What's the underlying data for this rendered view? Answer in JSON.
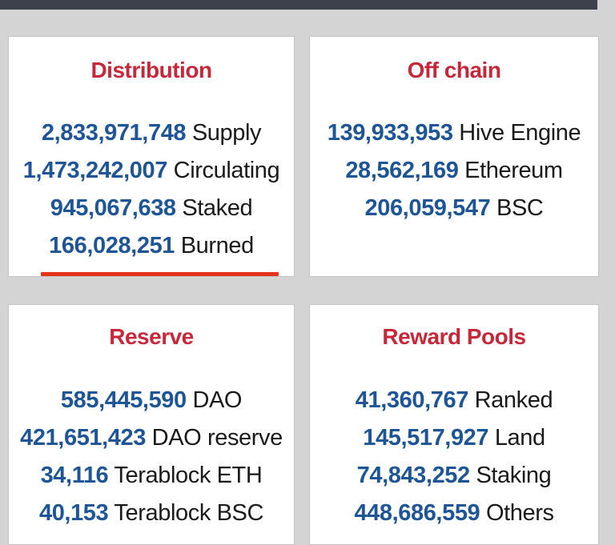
{
  "colors": {
    "background": "#d4d4d4",
    "card_background": "#ffffff",
    "title": "#c6283a",
    "number": "#1d5597",
    "label": "#1a1a1a",
    "underline": "#e5321c",
    "top_bar": "#3c414c"
  },
  "cards": {
    "distribution": {
      "title": "Distribution",
      "rows": [
        {
          "value": "2,833,971,748",
          "label": "Supply"
        },
        {
          "value": "1,473,242,007",
          "label": "Circulating"
        },
        {
          "value": "945,067,638",
          "label": "Staked"
        },
        {
          "value": "166,028,251",
          "label": "Burned"
        }
      ]
    },
    "off_chain": {
      "title": "Off chain",
      "rows": [
        {
          "value": "139,933,953",
          "label": "Hive Engine"
        },
        {
          "value": "28,562,169",
          "label": "Ethereum"
        },
        {
          "value": "206,059,547",
          "label": "BSC"
        }
      ]
    },
    "reserve": {
      "title": "Reserve",
      "rows": [
        {
          "value": "585,445,590",
          "label": "DAO"
        },
        {
          "value": "421,651,423",
          "label": "DAO reserve"
        },
        {
          "value": "34,116",
          "label": "Terablock ETH"
        },
        {
          "value": "40,153",
          "label": "Terablock BSC"
        }
      ]
    },
    "reward_pools": {
      "title": "Reward Pools",
      "rows": [
        {
          "value": "41,360,767",
          "label": "Ranked"
        },
        {
          "value": "145,517,927",
          "label": "Land"
        },
        {
          "value": "74,843,252",
          "label": "Staking"
        },
        {
          "value": "448,686,559",
          "label": "Others"
        }
      ]
    }
  }
}
